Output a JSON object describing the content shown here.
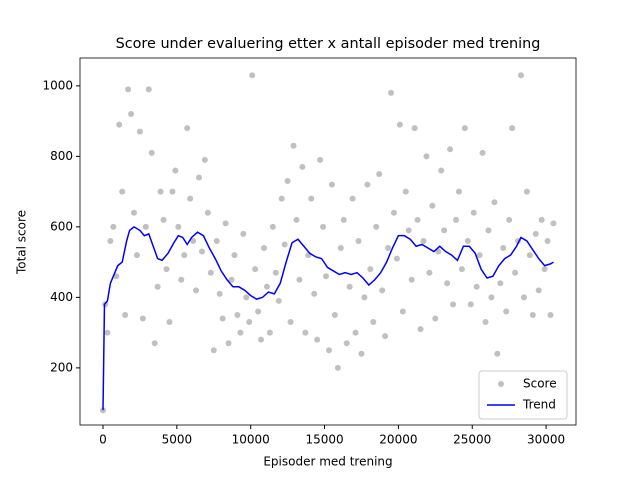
{
  "chart_data": {
    "type": "scatter",
    "title": "Score under evaluering etter x antall episoder med trening",
    "x_label": "Episoder med trening",
    "y_label": "Total score",
    "xlim": [
      -1557,
      32025
    ],
    "ylim": [
      38,
      1079
    ],
    "xticks": [
      0,
      5000,
      10000,
      15000,
      20000,
      25000,
      30000
    ],
    "yticks": [
      200,
      400,
      600,
      800,
      1000
    ],
    "legend": "lower right",
    "series": [
      {
        "name": "Score",
        "color": "#c0c0c0",
        "mode": "markers",
        "x": [
          0,
          150,
          300,
          500,
          700,
          900,
          1100,
          1300,
          1500,
          1700,
          1900,
          2100,
          2300,
          2500,
          2700,
          2900,
          3100,
          3300,
          3500,
          3700,
          3900,
          4100,
          4300,
          4500,
          4700,
          4900,
          5100,
          5300,
          5500,
          5700,
          5900,
          6100,
          6300,
          6500,
          6700,
          6900,
          7100,
          7300,
          7500,
          7700,
          7900,
          8100,
          8300,
          8500,
          8700,
          8900,
          9100,
          9300,
          9500,
          9700,
          9900,
          10100,
          10300,
          10500,
          10700,
          10900,
          11100,
          11300,
          11500,
          11700,
          11900,
          12100,
          12300,
          12500,
          12700,
          12900,
          13100,
          13300,
          13500,
          13700,
          13900,
          14100,
          14300,
          14500,
          14700,
          14900,
          15100,
          15300,
          15500,
          15700,
          15900,
          16100,
          16300,
          16500,
          16700,
          16900,
          17100,
          17300,
          17500,
          17700,
          17900,
          18100,
          18300,
          18500,
          18700,
          18900,
          19100,
          19300,
          19500,
          19700,
          19900,
          20100,
          20300,
          20500,
          20700,
          20900,
          21100,
          21300,
          21500,
          21700,
          21900,
          22100,
          22300,
          22500,
          22700,
          22900,
          23100,
          23300,
          23500,
          23700,
          23900,
          24100,
          24300,
          24500,
          24700,
          24900,
          25100,
          25300,
          25500,
          25700,
          25900,
          26100,
          26300,
          26500,
          26700,
          26900,
          27100,
          27300,
          27500,
          27700,
          27900,
          28100,
          28300,
          28500,
          28700,
          28900,
          29100,
          29300,
          29500,
          29700,
          29900,
          30100,
          30300,
          30500
        ],
        "values": [
          80,
          380,
          300,
          560,
          600,
          460,
          890,
          700,
          350,
          990,
          920,
          640,
          520,
          870,
          340,
          600,
          990,
          810,
          270,
          430,
          700,
          620,
          480,
          330,
          700,
          760,
          600,
          450,
          520,
          880,
          680,
          560,
          420,
          740,
          530,
          790,
          640,
          470,
          250,
          560,
          410,
          340,
          610,
          270,
          450,
          520,
          350,
          300,
          580,
          400,
          330,
          1030,
          480,
          360,
          280,
          540,
          430,
          300,
          600,
          470,
          390,
          680,
          550,
          730,
          330,
          830,
          620,
          450,
          770,
          300,
          520,
          680,
          410,
          280,
          790,
          600,
          460,
          250,
          720,
          350,
          200,
          540,
          620,
          270,
          430,
          680,
          300,
          560,
          240,
          400,
          720,
          480,
          330,
          600,
          750,
          420,
          290,
          540,
          980,
          640,
          510,
          890,
          360,
          700,
          590,
          450,
          880,
          620,
          310,
          560,
          800,
          470,
          660,
          340,
          530,
          760,
          590,
          440,
          820,
          380,
          620,
          700,
          480,
          880,
          560,
          380,
          640,
          430,
          520,
          810,
          330,
          590,
          400,
          670,
          240,
          440,
          540,
          360,
          620,
          880,
          470,
          560,
          1030,
          400,
          700,
          520,
          350,
          580,
          420,
          620,
          480,
          560,
          350,
          610
        ]
      },
      {
        "name": "Trend",
        "color": "#0000ff",
        "mode": "lines",
        "x": [
          0,
          100,
          300,
          500,
          800,
          1000,
          1300,
          1600,
          1800,
          2100,
          2500,
          2800,
          3100,
          3400,
          3700,
          4000,
          4400,
          4800,
          5100,
          5400,
          5700,
          6000,
          6400,
          6800,
          7200,
          7600,
          8000,
          8400,
          8800,
          9200,
          9600,
          10000,
          10400,
          10800,
          11200,
          11600,
          12000,
          12400,
          12800,
          13200,
          13600,
          14000,
          14400,
          14800,
          15200,
          15600,
          16000,
          16400,
          16800,
          17200,
          17600,
          18000,
          18400,
          18800,
          19200,
          19600,
          20000,
          20400,
          20800,
          21200,
          21600,
          22000,
          22400,
          22800,
          23200,
          23600,
          24000,
          24400,
          24800,
          25200,
          25600,
          26000,
          26400,
          26800,
          27200,
          27600,
          28000,
          28300,
          28700,
          29100,
          29500,
          29900,
          30300,
          30500
        ],
        "values": [
          80,
          380,
          390,
          440,
          470,
          490,
          500,
          560,
          590,
          600,
          590,
          575,
          580,
          545,
          510,
          505,
          525,
          555,
          575,
          570,
          550,
          570,
          585,
          575,
          540,
          510,
          475,
          450,
          430,
          430,
          420,
          405,
          395,
          400,
          415,
          410,
          440,
          500,
          555,
          565,
          545,
          525,
          515,
          510,
          485,
          475,
          465,
          470,
          465,
          470,
          455,
          435,
          450,
          470,
          500,
          540,
          575,
          575,
          565,
          545,
          550,
          540,
          530,
          545,
          530,
          520,
          505,
          545,
          545,
          525,
          480,
          455,
          460,
          490,
          510,
          520,
          545,
          570,
          560,
          535,
          510,
          490,
          495,
          500
        ]
      }
    ]
  }
}
